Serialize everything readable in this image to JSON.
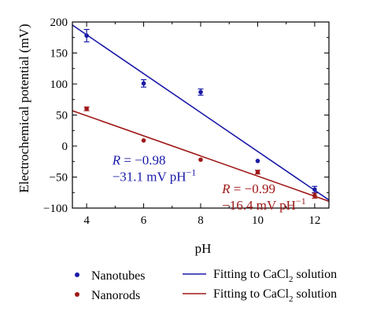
{
  "chart_data": {
    "type": "scatter",
    "title": "",
    "xlabel": "pH",
    "ylabel": "Electrochemical potential (mV)",
    "xlim": [
      3.5,
      12.5
    ],
    "ylim": [
      -100,
      200
    ],
    "xticks": [
      4,
      6,
      8,
      10,
      12
    ],
    "yticks": [
      -100,
      -50,
      0,
      50,
      100,
      150,
      200
    ],
    "grid": false,
    "legend_position": "bottom",
    "series": [
      {
        "name": "Nanotubes",
        "color": "#1a1aa8",
        "marker": "circle",
        "points": [
          {
            "x": 4,
            "y": 178,
            "err": 10
          },
          {
            "x": 6,
            "y": 101,
            "err": 6
          },
          {
            "x": 8,
            "y": 87,
            "err": 5
          },
          {
            "x": 10,
            "y": -24,
            "err": 0
          },
          {
            "x": 12,
            "y": -70,
            "err": 5
          }
        ]
      },
      {
        "name": "Nanorods",
        "color": "#a01818",
        "marker": "circle",
        "points": [
          {
            "x": 4,
            "y": 60,
            "err": 3
          },
          {
            "x": 6,
            "y": 9,
            "err": 0
          },
          {
            "x": 8,
            "y": -22,
            "err": 0
          },
          {
            "x": 10,
            "y": -42,
            "err": 3
          },
          {
            "x": 12,
            "y": -80,
            "err": 4
          }
        ]
      }
    ],
    "fits": [
      {
        "name": "Fitting to CaCl_2 solution",
        "label_main": "Fitting to CaCl",
        "label_sub": "2",
        "label_tail": " solution",
        "color": "#1a1aa8",
        "x": [
          3.5,
          12.5
        ],
        "y": [
          195,
          -87
        ]
      },
      {
        "name": "Fitting to CaCl_2 solution",
        "label_main": "Fitting to CaCl",
        "label_sub": "2",
        "label_tail": " solution",
        "color": "#a01818",
        "x": [
          3.5,
          12.5
        ],
        "y": [
          57,
          -89
        ]
      }
    ],
    "annotations": [
      {
        "color": "#1a1aa8",
        "r_italic": "R",
        "r_value": " = −0.98",
        "slope_main": "−31.1 mV pH",
        "slope_sup": "−1",
        "x": 4.9,
        "y": -30
      },
      {
        "color": "#a01818",
        "r_italic": "R",
        "r_value": " = −0.99",
        "slope_main": "−16.4 mV pH",
        "slope_sup": "−1",
        "x": 8.75,
        "y": -76
      }
    ]
  }
}
